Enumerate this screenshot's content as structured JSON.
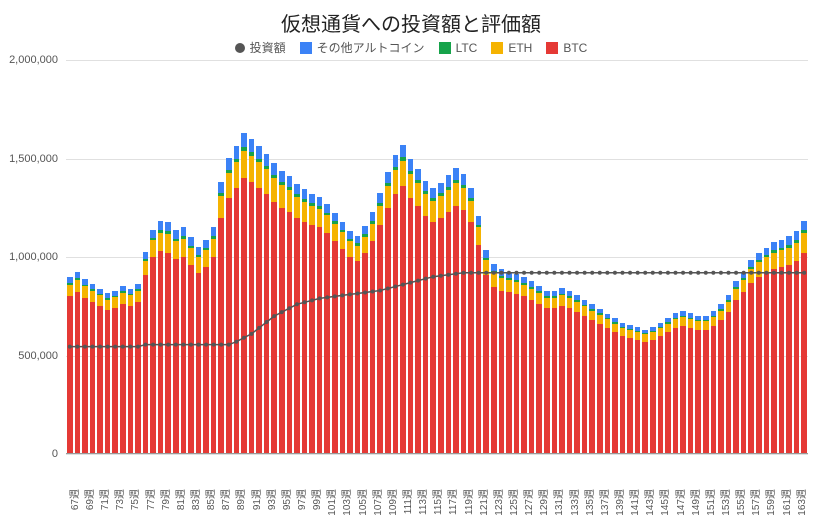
{
  "chart": {
    "type": "stacked_bar_with_line",
    "title": "仮想通貨への投資額と評価額",
    "title_fontsize": 20,
    "title_color": "#222222",
    "background_color": "#ffffff",
    "grid_color": "#e0e0e0",
    "legend": [
      {
        "label": "投資額",
        "color": "#555555",
        "marker": "dot"
      },
      {
        "label": "その他アルトコイン",
        "color": "#3b82f6",
        "marker": "square"
      },
      {
        "label": "LTC",
        "color": "#16a34a",
        "marker": "square"
      },
      {
        "label": "ETH",
        "color": "#f5b301",
        "marker": "square"
      },
      {
        "label": "BTC",
        "color": "#e53935",
        "marker": "square"
      }
    ],
    "colors": {
      "BTC": "#e53935",
      "ETH": "#f5b301",
      "LTC": "#16a34a",
      "OtherAlt": "#3b82f6",
      "line": "#555555"
    },
    "ylim": [
      0,
      2000000
    ],
    "yticks": [
      0,
      500000,
      1000000,
      1500000,
      2000000
    ],
    "ytick_labels": [
      "0",
      "500,000",
      "1,000,000",
      "1,500,000",
      "2,000,000"
    ],
    "xtick_step_display": 2,
    "bar_gap_ratio": 0.25,
    "label_fontsize": 11,
    "xlabel_fontsize": 10,
    "categories": [
      "67週",
      "68週",
      "69週",
      "70週",
      "71週",
      "72週",
      "73週",
      "74週",
      "75週",
      "76週",
      "77週",
      "78週",
      "79週",
      "80週",
      "81週",
      "82週",
      "83週",
      "84週",
      "85週",
      "86週",
      "87週",
      "88週",
      "89週",
      "90週",
      "91週",
      "92週",
      "93週",
      "94週",
      "95週",
      "96週",
      "97週",
      "98週",
      "99週",
      "100週",
      "101週",
      "102週",
      "103週",
      "104週",
      "105週",
      "106週",
      "107週",
      "108週",
      "109週",
      "110週",
      "111週",
      "112週",
      "113週",
      "114週",
      "115週",
      "116週",
      "117週",
      "118週",
      "119週",
      "120週",
      "121週",
      "122週",
      "123週",
      "124週",
      "125週",
      "126週",
      "127週",
      "128週",
      "129週",
      "130週",
      "131週",
      "132週",
      "133週",
      "134週",
      "135週",
      "136週",
      "137週",
      "138週",
      "139週",
      "140週",
      "141週",
      "142週",
      "143週",
      "144週",
      "145週",
      "146週",
      "147週",
      "148週",
      "149週",
      "150週",
      "151週",
      "152週",
      "153週",
      "154週",
      "155週",
      "156週",
      "157週",
      "158週",
      "159週",
      "160週",
      "161週",
      "162週",
      "163週",
      "164週"
    ],
    "series": {
      "BTC": [
        800000,
        820000,
        790000,
        770000,
        750000,
        730000,
        740000,
        760000,
        750000,
        770000,
        910000,
        1000000,
        1030000,
        1020000,
        990000,
        1000000,
        960000,
        920000,
        950000,
        1000000,
        1200000,
        1300000,
        1350000,
        1400000,
        1380000,
        1350000,
        1320000,
        1280000,
        1250000,
        1230000,
        1200000,
        1180000,
        1160000,
        1150000,
        1120000,
        1080000,
        1040000,
        1000000,
        980000,
        1020000,
        1080000,
        1160000,
        1250000,
        1320000,
        1360000,
        1300000,
        1260000,
        1210000,
        1180000,
        1200000,
        1230000,
        1260000,
        1240000,
        1180000,
        1060000,
        910000,
        850000,
        830000,
        820000,
        810000,
        800000,
        780000,
        760000,
        740000,
        740000,
        750000,
        740000,
        720000,
        700000,
        680000,
        660000,
        640000,
        620000,
        600000,
        590000,
        580000,
        570000,
        580000,
        600000,
        620000,
        640000,
        650000,
        640000,
        630000,
        630000,
        650000,
        680000,
        720000,
        780000,
        820000,
        870000,
        900000,
        920000,
        940000,
        950000,
        960000,
        980000,
        1020000
      ],
      "ETH": [
        60000,
        65000,
        62000,
        58000,
        55000,
        52000,
        55000,
        58000,
        55000,
        58000,
        72000,
        85000,
        92000,
        95000,
        90000,
        92000,
        85000,
        80000,
        85000,
        92000,
        110000,
        125000,
        132000,
        140000,
        135000,
        130000,
        125000,
        120000,
        115000,
        110000,
        105000,
        100000,
        98000,
        95000,
        92000,
        88000,
        85000,
        80000,
        78000,
        83000,
        90000,
        100000,
        112000,
        122000,
        128000,
        120000,
        115000,
        108000,
        105000,
        108000,
        112000,
        116000,
        112000,
        105000,
        90000,
        75000,
        68000,
        65000,
        63000,
        62000,
        60000,
        58000,
        56000,
        54000,
        54000,
        55000,
        54000,
        52000,
        50000,
        48000,
        46000,
        44000,
        42000,
        40000,
        39000,
        38000,
        37000,
        38000,
        40000,
        42000,
        44000,
        45000,
        44000,
        43000,
        43000,
        45000,
        48000,
        52000,
        58000,
        63000,
        70000,
        75000,
        78000,
        82000,
        85000,
        88000,
        92000,
        100000
      ],
      "LTC": [
        8000,
        8000,
        8000,
        8000,
        8000,
        8000,
        8000,
        8000,
        8000,
        8000,
        10000,
        11000,
        13000,
        15000,
        14000,
        14000,
        13000,
        12000,
        12000,
        14000,
        16000,
        17000,
        18000,
        19000,
        18000,
        18000,
        17000,
        16000,
        15000,
        15000,
        15000,
        14000,
        14000,
        14000,
        13000,
        13000,
        12000,
        12000,
        12000,
        12000,
        13000,
        14000,
        16000,
        17000,
        18000,
        17000,
        16000,
        15000,
        15000,
        15000,
        16000,
        17000,
        16000,
        15000,
        14000,
        12000,
        11000,
        11000,
        10000,
        10000,
        10000,
        9000,
        9000,
        9000,
        9000,
        9000,
        9000,
        8000,
        8000,
        8000,
        8000,
        7000,
        7000,
        7000,
        7000,
        7000,
        7000,
        7000,
        7000,
        7000,
        8000,
        8000,
        8000,
        8000,
        8000,
        8000,
        8000,
        9000,
        9000,
        10000,
        10000,
        11000,
        11000,
        12000,
        12000,
        13000,
        13000,
        15000
      ],
      "OtherAlt": [
        30000,
        32000,
        31000,
        29000,
        27000,
        26000,
        27000,
        29000,
        27000,
        29000,
        36000,
        42000,
        46000,
        47000,
        45000,
        46000,
        42000,
        40000,
        42000,
        46000,
        55000,
        62000,
        66000,
        70000,
        67000,
        65000,
        62000,
        60000,
        57000,
        55000,
        52000,
        50000,
        49000,
        47000,
        46000,
        44000,
        42000,
        40000,
        39000,
        41000,
        45000,
        50000,
        56000,
        61000,
        64000,
        60000,
        57000,
        54000,
        52000,
        54000,
        56000,
        58000,
        56000,
        52000,
        45000,
        37000,
        34000,
        32000,
        31000,
        31000,
        30000,
        29000,
        28000,
        27000,
        27000,
        27000,
        27000,
        26000,
        25000,
        24000,
        23000,
        22000,
        21000,
        20000,
        19000,
        19000,
        18000,
        19000,
        20000,
        21000,
        22000,
        22000,
        22000,
        21000,
        21000,
        22000,
        24000,
        26000,
        29000,
        31000,
        35000,
        37000,
        39000,
        41000,
        42000,
        44000,
        46000,
        50000
      ]
    },
    "line_series": {
      "投資額": [
        545000,
        545000,
        545000,
        545000,
        545000,
        545000,
        545000,
        545000,
        545000,
        545000,
        555000,
        555000,
        555000,
        555000,
        555000,
        555000,
        555000,
        555000,
        555000,
        555000,
        555000,
        555000,
        570000,
        590000,
        610000,
        640000,
        670000,
        700000,
        720000,
        740000,
        760000,
        770000,
        780000,
        790000,
        795000,
        800000,
        805000,
        810000,
        815000,
        820000,
        825000,
        830000,
        840000,
        850000,
        860000,
        870000,
        880000,
        890000,
        900000,
        905000,
        910000,
        915000,
        920000,
        920000,
        920000,
        920000,
        920000,
        920000,
        920000,
        920000,
        920000,
        920000,
        920000,
        920000,
        920000,
        920000,
        920000,
        920000,
        920000,
        920000,
        920000,
        920000,
        920000,
        920000,
        920000,
        920000,
        920000,
        920000,
        920000,
        920000,
        920000,
        920000,
        920000,
        920000,
        920000,
        920000,
        920000,
        920000,
        920000,
        920000,
        920000,
        920000,
        920000,
        920000,
        920000,
        920000,
        920000,
        920000
      ]
    },
    "line_style": {
      "stroke_width": 1.5,
      "marker_radius": 2.0,
      "marker_shape": "circle"
    }
  }
}
